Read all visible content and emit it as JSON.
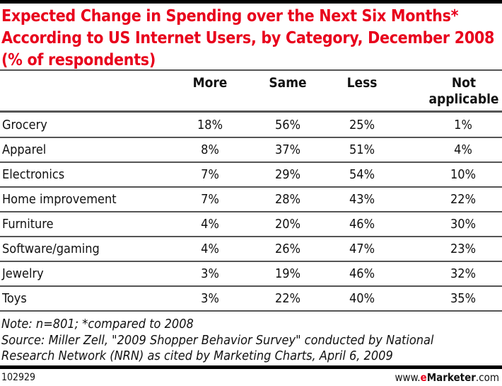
{
  "chart_data": {
    "type": "table",
    "title": "Expected Change in Spending over the Next Six Months* According to US Internet Users, by Category, December 2008 (% of respondents)",
    "columns": [
      "More",
      "Same",
      "Less",
      "Not applicable"
    ],
    "rows": [
      {
        "category": "Grocery",
        "values": [
          "18%",
          "56%",
          "25%",
          "1%"
        ]
      },
      {
        "category": "Apparel",
        "values": [
          "8%",
          "37%",
          "51%",
          "4%"
        ]
      },
      {
        "category": "Electronics",
        "values": [
          "7%",
          "29%",
          "54%",
          "10%"
        ]
      },
      {
        "category": "Home improvement",
        "values": [
          "7%",
          "28%",
          "43%",
          "22%"
        ]
      },
      {
        "category": "Furniture",
        "values": [
          "4%",
          "20%",
          "46%",
          "30%"
        ]
      },
      {
        "category": "Software/gaming",
        "values": [
          "4%",
          "26%",
          "47%",
          "23%"
        ]
      },
      {
        "category": "Jewelry",
        "values": [
          "3%",
          "19%",
          "46%",
          "32%"
        ]
      },
      {
        "category": "Toys",
        "values": [
          "3%",
          "22%",
          "40%",
          "35%"
        ]
      }
    ],
    "note": "Note: n=801; *compared to 2008",
    "source_line1": "Source: Miller Zell, \"2009 Shopper Behavior Survey\" conducted by National",
    "source_line2": "Research Network (NRN) as cited by Marketing Charts, April 6, 2009"
  },
  "footer": {
    "id": "102929",
    "site_prefix": "www.",
    "site_brand_e": "e",
    "site_brand_rest": "Marketer",
    "site_suffix": ".com"
  },
  "colors": {
    "title": "#e8001c",
    "brand": "#e8001c"
  }
}
